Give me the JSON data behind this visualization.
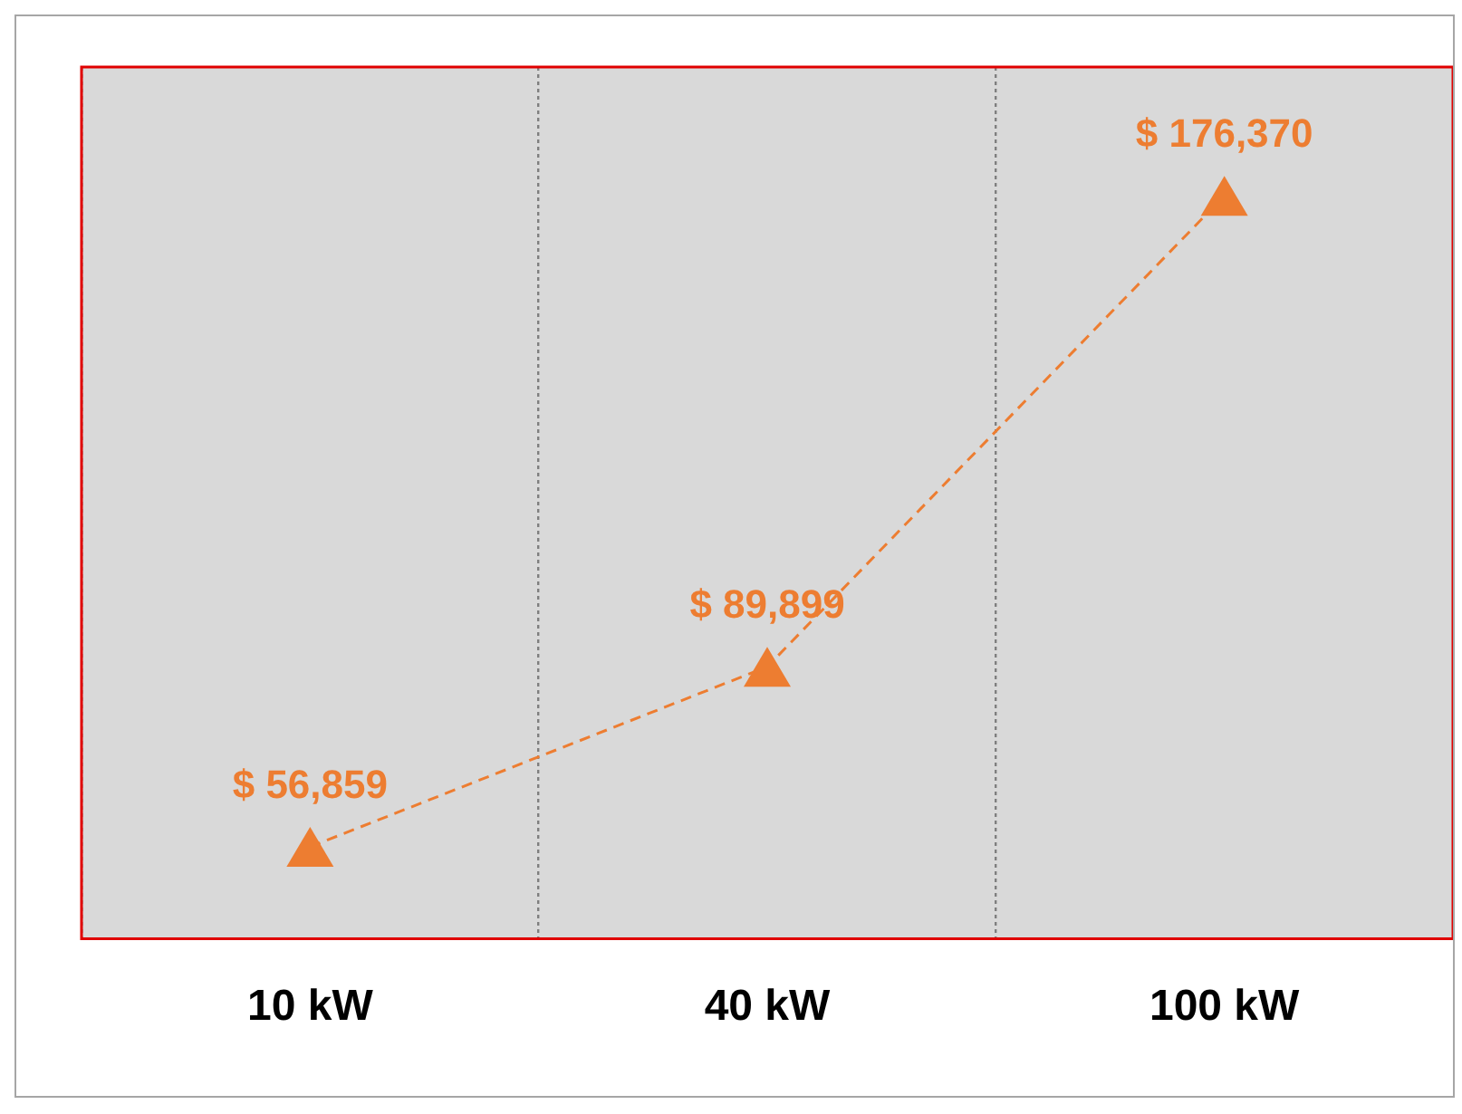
{
  "chart_data": {
    "type": "line",
    "categories": [
      "10 kW",
      "40 kW",
      "100 kW"
    ],
    "series": [
      {
        "color": "#ed7d31",
        "values": [
          56859,
          89899,
          176370
        ],
        "value_labels": [
          "$ 56,859",
          "$ 89,899",
          "$ 176,370"
        ]
      }
    ],
    "relative": false,
    "grid": "x",
    "legend": false,
    "marker": "triangle",
    "line_style": "dashed"
  }
}
